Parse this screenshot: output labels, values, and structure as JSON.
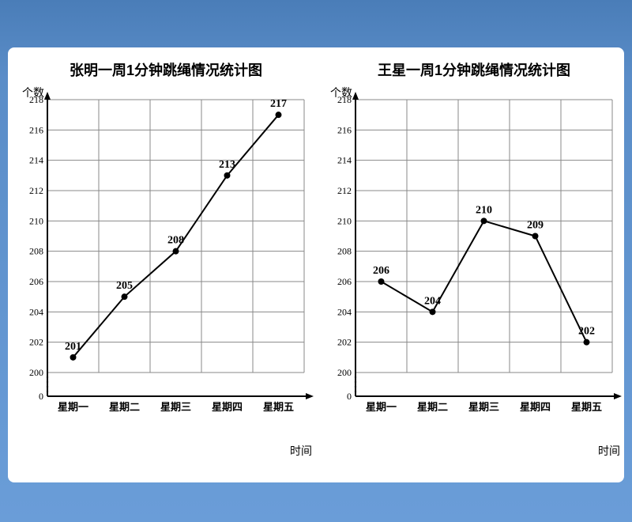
{
  "chart1": {
    "title": "张明一周1分钟跳绳情况统计图",
    "y_axis_label": "个数",
    "x_axis_label": "时间",
    "type": "line",
    "categories": [
      "星期一",
      "星期二",
      "星期三",
      "星期四",
      "星期五"
    ],
    "values": [
      201,
      205,
      208,
      213,
      217
    ],
    "value_labels": [
      "201",
      "205",
      "208",
      "213",
      "217"
    ],
    "y_ticks": [
      0,
      200,
      202,
      204,
      206,
      208,
      210,
      212,
      214,
      216,
      218
    ],
    "y_break": true,
    "ylim_top": 218,
    "ylim_bottom_compressed": 200,
    "line_color": "#000000",
    "line_width": 2,
    "marker": "circle",
    "marker_size": 4,
    "grid_color": "#888888",
    "background_color": "#ffffff",
    "axis_color": "#000000",
    "title_fontsize": 18,
    "tick_fontsize": 12
  },
  "chart2": {
    "title": "王星一周1分钟跳绳情况统计图",
    "y_axis_label": "个数",
    "x_axis_label": "时间",
    "type": "line",
    "categories": [
      "星期一",
      "星期二",
      "星期三",
      "星期四",
      "星期五"
    ],
    "values": [
      206,
      204,
      210,
      209,
      202
    ],
    "value_labels": [
      "206",
      "204",
      "210",
      "209",
      "202"
    ],
    "y_ticks": [
      0,
      200,
      202,
      204,
      206,
      208,
      210,
      212,
      214,
      216,
      218
    ],
    "y_break": true,
    "ylim_top": 218,
    "ylim_bottom_compressed": 200,
    "line_color": "#000000",
    "line_width": 2,
    "marker": "circle",
    "marker_size": 4,
    "grid_color": "#888888",
    "background_color": "#ffffff",
    "axis_color": "#000000",
    "title_fontsize": 18,
    "tick_fontsize": 12
  }
}
